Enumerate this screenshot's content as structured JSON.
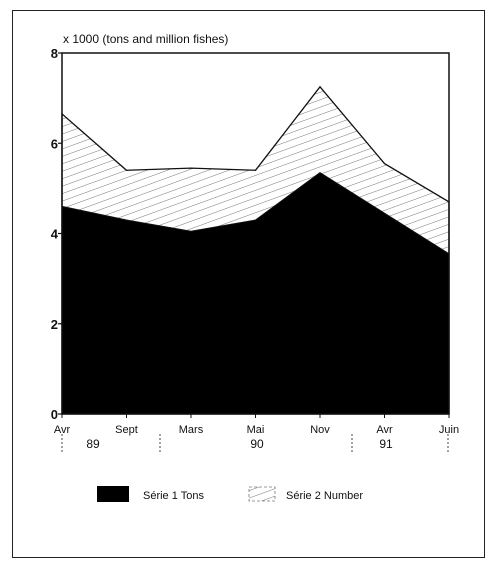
{
  "chart_data": {
    "type": "area",
    "title": "",
    "unit_label": "x 1000 (tons and million fishes)",
    "xlabel": "",
    "ylabel": "",
    "x": [
      "Avr",
      "Sept",
      "Mars",
      "Mai",
      "Nov",
      "Avr",
      "Juin"
    ],
    "year_labels": [
      "89",
      "90",
      "91"
    ],
    "y_ticks": [
      "0",
      "2",
      "4",
      "6",
      "8"
    ],
    "ylim": [
      0,
      8
    ],
    "stacked": false,
    "series": [
      {
        "name": "Série 1 Tons",
        "values": [
          4.6,
          4.3,
          4.05,
          4.3,
          5.35,
          4.45,
          3.55
        ],
        "fill": "solid-black"
      },
      {
        "name": "Série 2 Number",
        "values": [
          6.65,
          5.4,
          5.45,
          5.4,
          7.25,
          5.55,
          4.7
        ],
        "fill": "hatched"
      }
    ],
    "legend_position": "bottom",
    "grid": false,
    "colors": {
      "series1": "#000000",
      "series2_hatch": "#555555",
      "border": "#222222"
    }
  }
}
